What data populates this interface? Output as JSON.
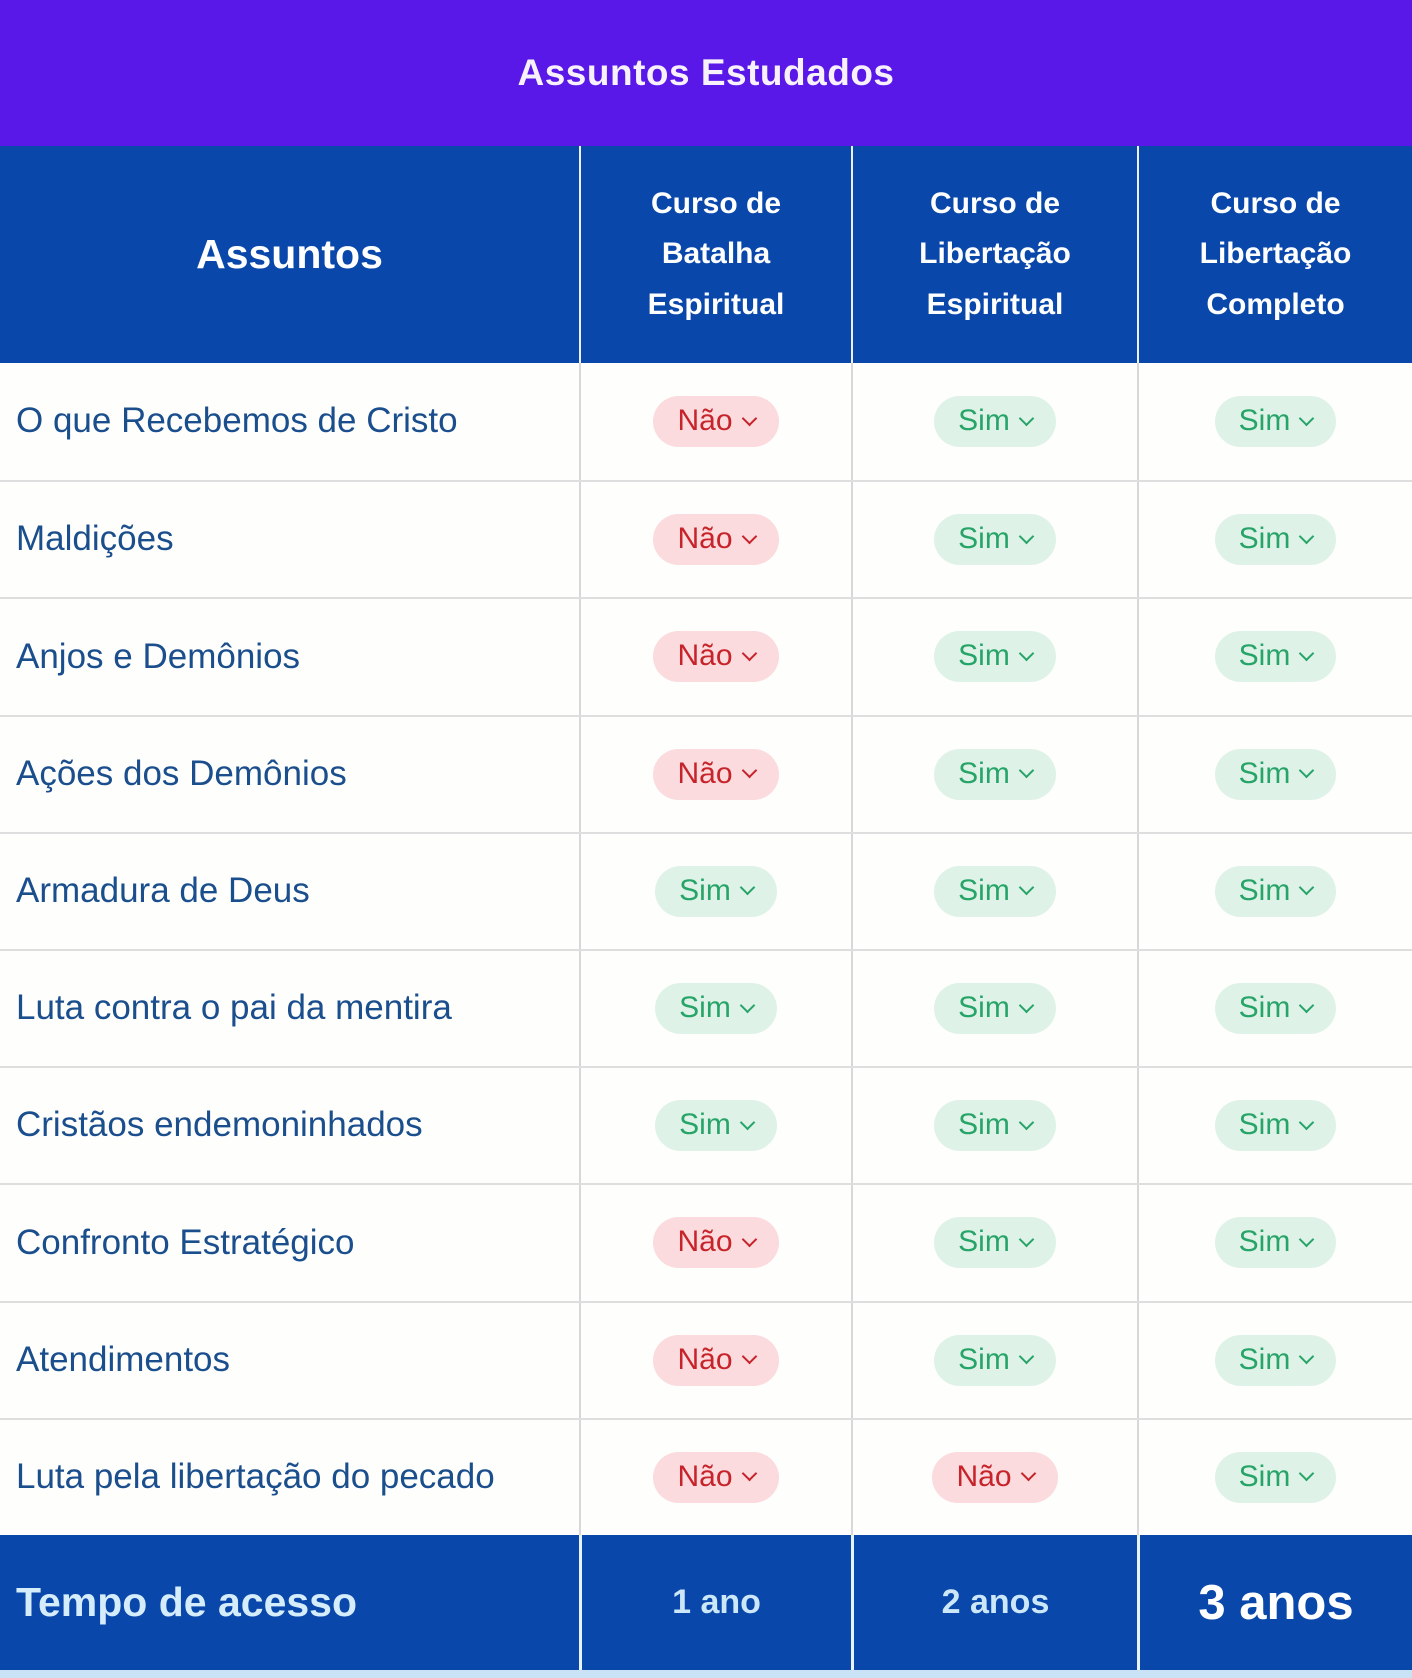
{
  "banner": {
    "title": "Assuntos Estudados"
  },
  "table": {
    "header": {
      "assuntos_label": "Assuntos",
      "columns": [
        "Curso de Batalha Espiritual",
        "Curso de Libertação Espiritual",
        "Curso de Libertação Completo"
      ]
    },
    "rows": [
      {
        "label": "O que Recebemos de Cristo",
        "values": [
          "Não",
          "Sim",
          "Sim"
        ]
      },
      {
        "label": "Maldições",
        "values": [
          "Não",
          "Sim",
          "Sim"
        ]
      },
      {
        "label": "Anjos e Demônios",
        "values": [
          "Não",
          "Sim",
          "Sim"
        ]
      },
      {
        "label": "Ações dos Demônios",
        "values": [
          "Não",
          "Sim",
          "Sim"
        ]
      },
      {
        "label": "Armadura de Deus",
        "values": [
          "Sim",
          "Sim",
          "Sim"
        ]
      },
      {
        "label": "Luta contra o pai da mentira",
        "values": [
          "Sim",
          "Sim",
          "Sim"
        ]
      },
      {
        "label": "Cristãos endemoninhados",
        "values": [
          "Sim",
          "Sim",
          "Sim"
        ]
      },
      {
        "label": "Confronto Estratégico",
        "values": [
          "Não",
          "Sim",
          "Sim"
        ]
      },
      {
        "label": "Atendimentos",
        "values": [
          "Não",
          "Sim",
          "Sim"
        ]
      },
      {
        "label": "Luta pela libertação do pecado",
        "values": [
          "Não",
          "Não",
          "Sim"
        ]
      }
    ],
    "footer": {
      "label": "Tempo de acesso",
      "values": [
        "1 ano",
        "2 anos",
        "3 anos"
      ]
    }
  },
  "badge_states": {
    "yes": "Sim",
    "no": "Não"
  },
  "colors": {
    "banner_bg": "#5917E8",
    "header_bg": "#0947AB",
    "cell_bg": "#FEFEFD",
    "label_color": "#1A4E8C",
    "yes_bg": "#DFF2E8",
    "yes_color": "#27A468",
    "no_bg": "#FBDBDD",
    "no_color": "#C7232A"
  }
}
